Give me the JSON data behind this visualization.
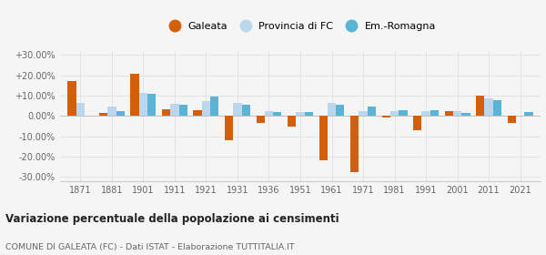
{
  "years": [
    1871,
    1881,
    1901,
    1911,
    1921,
    1931,
    1936,
    1951,
    1961,
    1971,
    1981,
    1991,
    2001,
    2011,
    2021
  ],
  "galeata": [
    17.0,
    1.5,
    21.0,
    3.5,
    3.0,
    -12.0,
    -3.5,
    -5.0,
    -22.0,
    -27.5,
    -0.5,
    -7.0,
    2.5,
    10.0,
    -3.5
  ],
  "provincia_fc": [
    6.5,
    4.5,
    11.5,
    6.0,
    7.5,
    6.5,
    2.5,
    2.0,
    6.5,
    2.5,
    2.5,
    2.5,
    2.5,
    8.5,
    0.0
  ],
  "em_romagna": [
    0.0,
    2.5,
    11.0,
    5.5,
    9.5,
    5.5,
    2.0,
    2.0,
    5.5,
    4.5,
    3.0,
    3.0,
    1.5,
    8.0,
    2.0
  ],
  "color_galeata": "#d45f0a",
  "color_provincia": "#bcd6ec",
  "color_emromagna": "#5ab4d6",
  "ylim": [
    -32,
    32
  ],
  "yticks": [
    -30,
    -20,
    -10,
    0,
    10,
    20,
    30
  ],
  "title": "Variazione percentuale della popolazione ai censimenti",
  "subtitle": "COMUNE DI GALEATA (FC) - Dati ISTAT - Elaborazione TUTTITALIA.IT",
  "legend_labels": [
    "Galeata",
    "Provincia di FC",
    "Em.-Romagna"
  ],
  "background_color": "#f5f5f5",
  "grid_color": "#e0e0e0"
}
